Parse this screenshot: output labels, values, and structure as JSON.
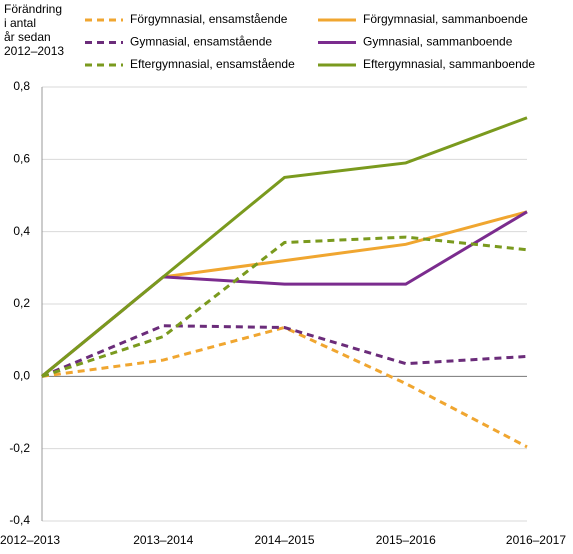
{
  "chart_data": {
    "type": "line",
    "y_label": [
      "Förändring",
      "i antal",
      "år sedan",
      "2012–2013"
    ],
    "categories": [
      "2012–2013",
      "2013–2014",
      "2014–2015",
      "2015–2016",
      "2016–2017"
    ],
    "series": [
      {
        "name": "Förgymnasial, ensamstående",
        "color": "#f0a630",
        "dashed": true,
        "values": [
          0,
          0.045,
          0.135,
          -0.02,
          -0.195
        ]
      },
      {
        "name": "Förgymnasial, sammanboende",
        "color": "#f0a630",
        "dashed": false,
        "values": [
          0,
          0.275,
          0.32,
          0.365,
          0.455
        ]
      },
      {
        "name": "Gymnasial, ensamstående",
        "color": "#6b2c7a",
        "dashed": true,
        "values": [
          0,
          0.14,
          0.135,
          0.035,
          0.055
        ]
      },
      {
        "name": "Gymnasial, sammanboende",
        "color": "#7b2c8e",
        "dashed": false,
        "values": [
          0,
          0.275,
          0.255,
          0.255,
          0.455
        ]
      },
      {
        "name": "Eftergymnasial, ensamstående",
        "color": "#7a9a1e",
        "dashed": true,
        "values": [
          0,
          0.11,
          0.37,
          0.385,
          0.35
        ]
      },
      {
        "name": "Eftergymnasial, sammanboende",
        "color": "#7a9a1e",
        "dashed": false,
        "values": [
          0,
          0.275,
          0.55,
          0.59,
          0.715
        ]
      }
    ],
    "ylim": [
      -0.4,
      0.8
    ],
    "yticks": [
      {
        "value": -0.4,
        "label": "-0,4"
      },
      {
        "value": -0.2,
        "label": "-0,2"
      },
      {
        "value": 0,
        "label": "0,0"
      },
      {
        "value": 0.2,
        "label": "0,2"
      },
      {
        "value": 0.4,
        "label": "0,4"
      },
      {
        "value": 0.6,
        "label": "0,6"
      },
      {
        "value": 0.8,
        "label": "0,8"
      }
    ],
    "grid": true
  }
}
